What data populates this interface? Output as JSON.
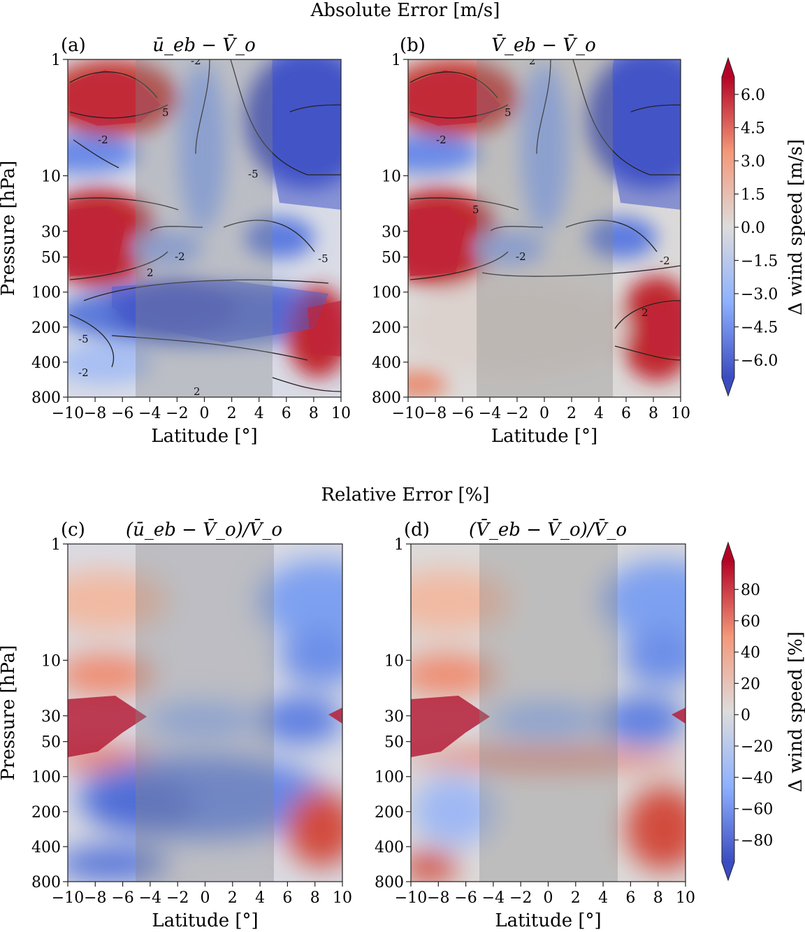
{
  "figure": {
    "top_title": "Absolute Error [m/s]",
    "bottom_title": "Relative Error [%]"
  },
  "chart_data": [
    {
      "type": "heatmap",
      "panel": "(a)",
      "title": "ū_eb − V̄_o",
      "xlabel": "Latitude [°]",
      "ylabel": "Pressure [hPa]",
      "xlim": [
        -10,
        10
      ],
      "xticks": [
        -10,
        -8,
        -6,
        -4,
        -2,
        0,
        2,
        4,
        6,
        8,
        10
      ],
      "ylim": [
        800,
        1
      ],
      "yscale": "log",
      "yticks": [
        1,
        10,
        30,
        50,
        100,
        200,
        400,
        800
      ],
      "shaded_band": [
        -5,
        5
      ],
      "colorbar": "Δ wind speed [m/s]",
      "contour_labels": [
        "-2",
        "5",
        "-2",
        "-5",
        "-2",
        "-5",
        "2",
        "-5",
        "-2",
        "2",
        "2"
      ],
      "features": [
        {
          "lat": -7,
          "p": 3,
          "value": 7
        },
        {
          "lat": -8,
          "p": 40,
          "value": 7
        },
        {
          "lat": -9,
          "p": 8,
          "value": -4
        },
        {
          "lat": 8,
          "p": 5,
          "value": -7
        },
        {
          "lat": -1,
          "p": 170,
          "value": -7
        },
        {
          "lat": 9,
          "p": 250,
          "value": 7
        },
        {
          "lat": 6,
          "p": 35,
          "value": -5
        }
      ]
    },
    {
      "type": "heatmap",
      "panel": "(b)",
      "title": "V̄_eb − V̄_o",
      "xlabel": "Latitude [°]",
      "ylabel": "",
      "xlim": [
        -10,
        10
      ],
      "xticks": [
        -10,
        -8,
        -6,
        -4,
        -2,
        0,
        2,
        4,
        6,
        8,
        10
      ],
      "ylim": [
        800,
        1
      ],
      "yscale": "log",
      "yticks": [
        1,
        10,
        30,
        50,
        100,
        200,
        400,
        800
      ],
      "shaded_band": [
        -5,
        5
      ],
      "colorbar": "Δ wind speed [m/s]",
      "contour_labels": [
        "2",
        "5",
        "-2",
        "5",
        "-2",
        "-2",
        "2"
      ],
      "features": [
        {
          "lat": -7,
          "p": 3,
          "value": 7
        },
        {
          "lat": -8,
          "p": 40,
          "value": 7
        },
        {
          "lat": 8,
          "p": 5,
          "value": -7
        },
        {
          "lat": 9,
          "p": 250,
          "value": 7
        },
        {
          "lat": 6,
          "p": 35,
          "value": -5
        }
      ]
    },
    {
      "type": "heatmap",
      "panel": "(c)",
      "title": "(ū_eb − V̄_o)/V̄_o",
      "xlabel": "Latitude [°]",
      "ylabel": "Pressure [hPa]",
      "xlim": [
        -10,
        10
      ],
      "xticks": [
        -10,
        -8,
        -6,
        -4,
        -2,
        0,
        2,
        4,
        6,
        8,
        10
      ],
      "ylim": [
        800,
        1
      ],
      "yscale": "log",
      "yticks": [
        1,
        10,
        30,
        50,
        100,
        200,
        400,
        800
      ],
      "shaded_band": [
        -5,
        5
      ],
      "colorbar": "Δ wind speed [%]",
      "features": [
        {
          "lat": -8,
          "p": 40,
          "value": 100
        },
        {
          "lat": 9,
          "p": 300,
          "value": 70
        },
        {
          "lat": 0,
          "p": 200,
          "value": -60
        },
        {
          "lat": 7,
          "p": 40,
          "value": -60
        }
      ]
    },
    {
      "type": "heatmap",
      "panel": "(d)",
      "title": "(V̄_eb − V̄_o)/V̄_o",
      "xlabel": "Latitude [°]",
      "ylabel": "",
      "xlim": [
        -10,
        10
      ],
      "xticks": [
        -10,
        -8,
        -6,
        -4,
        -2,
        0,
        2,
        4,
        6,
        8,
        10
      ],
      "ylim": [
        800,
        1
      ],
      "yscale": "log",
      "yticks": [
        1,
        10,
        30,
        50,
        100,
        200,
        400,
        800
      ],
      "shaded_band": [
        -5,
        5
      ],
      "colorbar": "Δ wind speed [%]",
      "features": [
        {
          "lat": -8,
          "p": 40,
          "value": 100
        },
        {
          "lat": 9,
          "p": 300,
          "value": 70
        },
        {
          "lat": 7,
          "p": 40,
          "value": -60
        }
      ]
    }
  ],
  "colorbars": [
    {
      "label": "Δ wind speed [m/s]",
      "ticks": [
        "6.0",
        "4.5",
        "3.0",
        "1.5",
        "0.0",
        "−1.5",
        "−3.0",
        "−4.5",
        "−6.0"
      ]
    },
    {
      "label": "Δ wind speed [%]",
      "ticks": [
        "80",
        "60",
        "40",
        "20",
        "0",
        "−20",
        "−40",
        "−60",
        "−80"
      ]
    }
  ],
  "colors": {
    "strong_red": "#b40426",
    "red": "#e7745b",
    "neutral": "#dddddd",
    "blue": "#6f92f3",
    "strong_blue": "#3b4cc0",
    "band_overlay": "#888888"
  }
}
